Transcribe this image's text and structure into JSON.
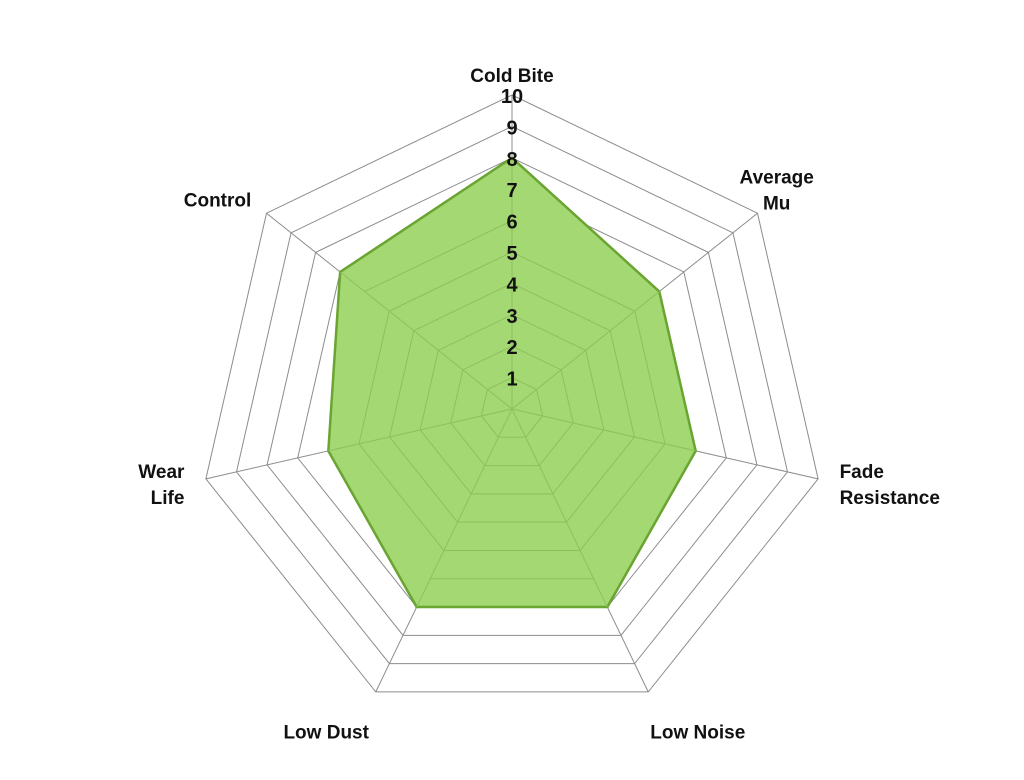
{
  "chart_data": {
    "type": "radar",
    "title": "",
    "axes": [
      [
        "Cold Bite"
      ],
      [
        "Average",
        "Mu"
      ],
      [
        "Fade",
        "Resistance"
      ],
      [
        "Low Noise"
      ],
      [
        "Low Dust"
      ],
      [
        "Wear",
        "Life"
      ],
      [
        "Control"
      ]
    ],
    "values": [
      8,
      6,
      6,
      7,
      7,
      6,
      7
    ],
    "rlim": [
      0,
      10
    ],
    "ticks": [
      "1",
      "2",
      "3",
      "4",
      "5",
      "6",
      "7",
      "8",
      "9",
      "10"
    ],
    "grid": true,
    "colors": {
      "fill": "#a3d872",
      "stroke": "#6aa431",
      "grid": "#8c8c8c",
      "inner_grid": "#8fbf5f"
    }
  }
}
